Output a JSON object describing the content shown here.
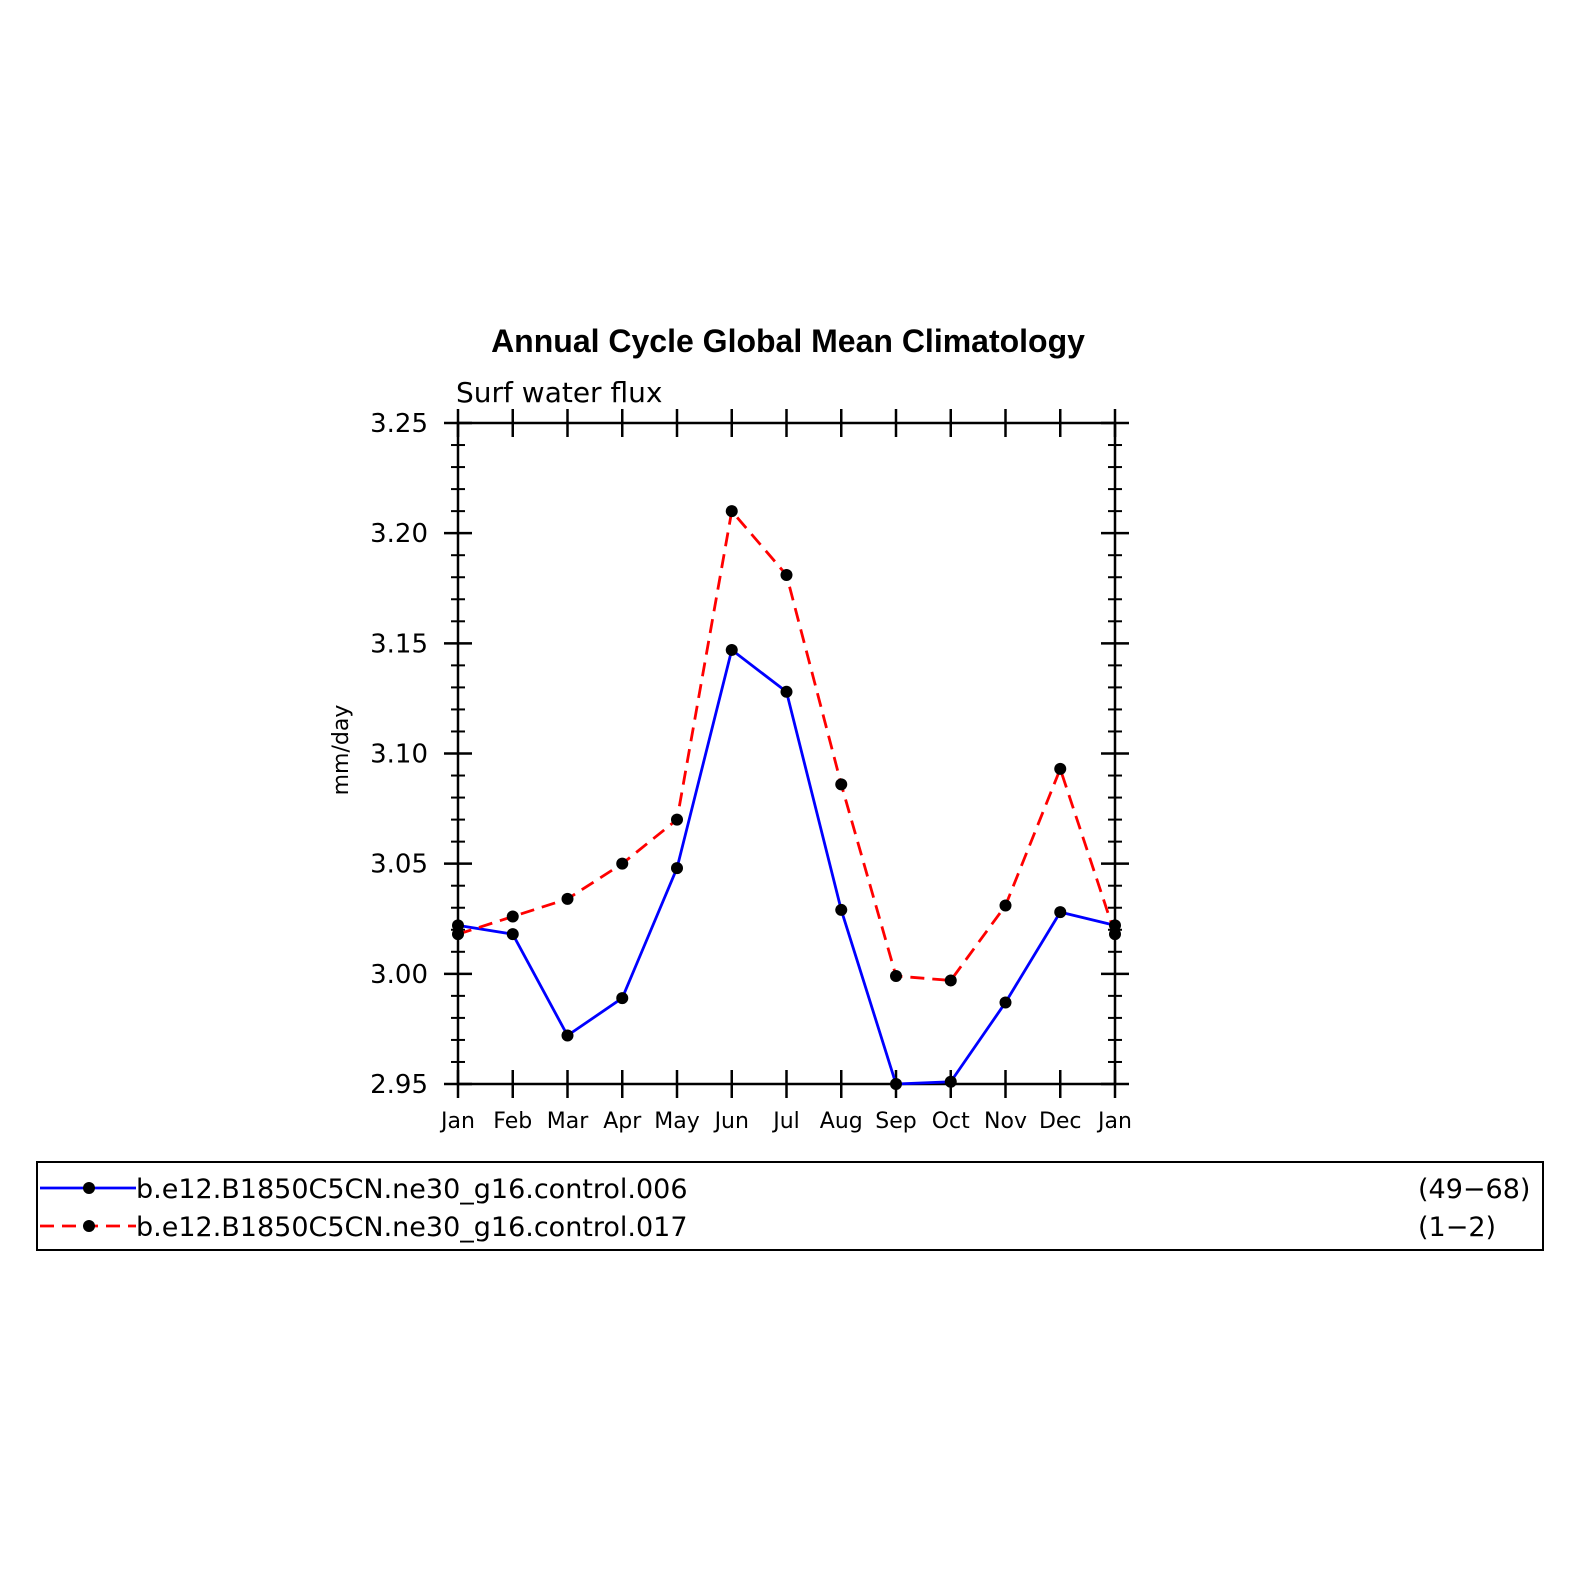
{
  "chart_data": {
    "type": "line",
    "title": "Annual Cycle Global Mean Climatology",
    "subtitle": "Surf water flux",
    "xlabel": "",
    "ylabel": "mm/day",
    "categories": [
      "Jan",
      "Feb",
      "Mar",
      "Apr",
      "May",
      "Jun",
      "Jul",
      "Aug",
      "Sep",
      "Oct",
      "Nov",
      "Dec",
      "Jan"
    ],
    "ylim": [
      2.95,
      3.25
    ],
    "yticks": [
      "2.95",
      "3.00",
      "3.05",
      "3.10",
      "3.15",
      "3.20",
      "3.25"
    ],
    "grid": false,
    "legend_position": "bottom",
    "series": [
      {
        "name": "b.e12.B1850C5CN.ne30_g16.control.006",
        "years": "(49−68)",
        "color": "#0000ff",
        "dash": "solid",
        "values": [
          3.022,
          3.018,
          2.972,
          2.989,
          3.048,
          3.147,
          3.128,
          3.029,
          2.95,
          2.951,
          2.987,
          3.028,
          3.022
        ]
      },
      {
        "name": "b.e12.B1850C5CN.ne30_g16.control.017",
        "years": "(1−2)",
        "color": "#ff0000",
        "dash": "dashed",
        "values": [
          3.018,
          3.026,
          3.034,
          3.05,
          3.07,
          3.21,
          3.181,
          3.086,
          2.999,
          2.997,
          3.031,
          3.093,
          3.018
        ]
      }
    ]
  }
}
